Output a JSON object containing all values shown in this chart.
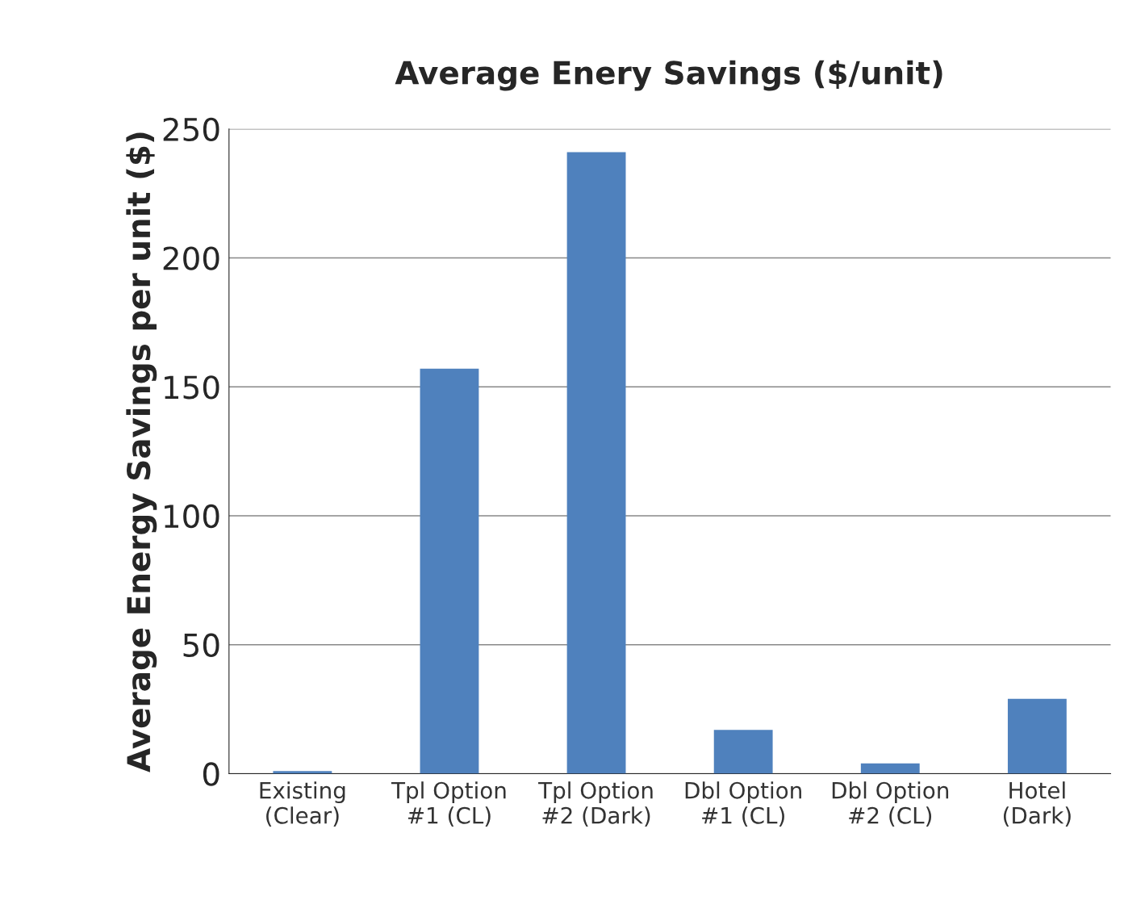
{
  "chart_data": {
    "type": "bar",
    "title": "Average Enery Savings ($/unit)",
    "ylabel": "Average Energy Savings per unit ($)",
    "categories": [
      "Existing\n(Clear)",
      "Tpl Option\n#1 (CL)",
      "Tpl Option\n#2 (Dark)",
      "Dbl Option\n#1 (CL)",
      "Dbl Option\n#2 (CL)",
      "Hotel\n(Dark)"
    ],
    "values": [
      1,
      157,
      241,
      17,
      4,
      29
    ],
    "color": "#4f81bd",
    "ylim": [
      0,
      250
    ],
    "yticks": [
      0,
      50,
      100,
      150,
      200,
      250
    ],
    "grid": "y",
    "legend": false
  }
}
